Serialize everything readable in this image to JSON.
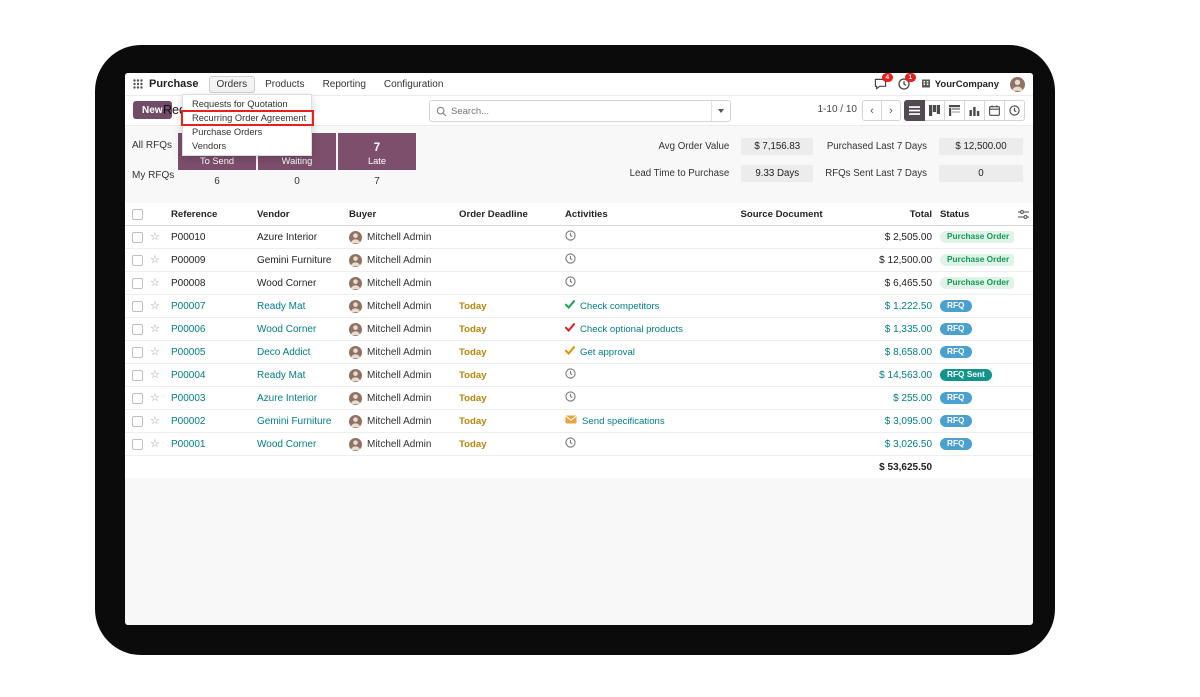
{
  "colors": {
    "brand_purple": "#714B67",
    "tile_purple": "#7d4f6d",
    "link_teal": "#017e84",
    "today_amber": "#b8860b",
    "annotation_red": "#e5201d",
    "status_po_green": "#139a53",
    "status_rfq_blue": "#4aa0cf",
    "status_rfq_sent_teal": "#12948c"
  },
  "navbar": {
    "app_name": "Purchase",
    "menus": [
      {
        "label": "Orders",
        "active": true
      },
      {
        "label": "Products",
        "active": false
      },
      {
        "label": "Reporting",
        "active": false
      },
      {
        "label": "Configuration",
        "active": false
      }
    ],
    "systray": {
      "messages_badge": "4",
      "activities_badge": "1",
      "company": "YourCompany"
    }
  },
  "orders_menu": {
    "items": [
      {
        "label": "Requests for Quotation",
        "annotated": false
      },
      {
        "label": "Recurring Order Agreement",
        "annotated": true
      },
      {
        "label": "Purchase Orders",
        "annotated": false
      },
      {
        "label": "Vendors",
        "annotated": false
      }
    ]
  },
  "control_panel": {
    "new_button": "New",
    "title": "Requests for Quotation",
    "search_placeholder": "Search...",
    "pager": "1-10 / 10",
    "views": [
      "list",
      "kanban",
      "pivot",
      "graph",
      "calendar",
      "activity"
    ]
  },
  "dashboard": {
    "row_labels": [
      "All RFQs",
      "My RFQs"
    ],
    "tiles": [
      {
        "label": "To Send",
        "all": "",
        "my": "6"
      },
      {
        "label": "Waiting",
        "all": "",
        "my": "0"
      },
      {
        "label": "Late",
        "all": "7",
        "my": "7"
      }
    ],
    "kpis": [
      {
        "label": "Avg Order Value",
        "value": "$ 7,156.83"
      },
      {
        "label": "Lead Time to Purchase",
        "value": "9.33 Days"
      },
      {
        "label": "Purchased Last 7 Days",
        "value": "$ 12,500.00"
      },
      {
        "label": "RFQs Sent Last 7 Days",
        "value": "0"
      }
    ]
  },
  "table": {
    "headers": [
      "Reference",
      "Vendor",
      "Buyer",
      "Order Deadline",
      "Activities",
      "Source Document",
      "Total",
      "Status"
    ],
    "rows": [
      {
        "reference": "P00010",
        "vendor": "Azure Interior",
        "buyer": "Mitchell Admin",
        "deadline": "",
        "activity": {
          "icon": "clock",
          "color": "",
          "text": ""
        },
        "source": "",
        "total": "$ 2,505.00",
        "status": "Purchase Order",
        "status_style": "po",
        "tone": "dark"
      },
      {
        "reference": "P00009",
        "vendor": "Gemini Furniture",
        "buyer": "Mitchell Admin",
        "deadline": "",
        "activity": {
          "icon": "clock",
          "color": "",
          "text": ""
        },
        "source": "",
        "total": "$ 12,500.00",
        "status": "Purchase Order",
        "status_style": "po",
        "tone": "dark"
      },
      {
        "reference": "P00008",
        "vendor": "Wood Corner",
        "buyer": "Mitchell Admin",
        "deadline": "",
        "activity": {
          "icon": "clock",
          "color": "",
          "text": ""
        },
        "source": "",
        "total": "$ 6,465.50",
        "status": "Purchase Order",
        "status_style": "po",
        "tone": "dark"
      },
      {
        "reference": "P00007",
        "vendor": "Ready Mat",
        "buyer": "Mitchell Admin",
        "deadline": "Today",
        "activity": {
          "icon": "check",
          "color": "green",
          "text": "Check competitors"
        },
        "source": "",
        "total": "$ 1,222.50",
        "status": "RFQ",
        "status_style": "rfq",
        "tone": "teal"
      },
      {
        "reference": "P00006",
        "vendor": "Wood Corner",
        "buyer": "Mitchell Admin",
        "deadline": "Today",
        "activity": {
          "icon": "check",
          "color": "red",
          "text": "Check optional products"
        },
        "source": "",
        "total": "$ 1,335.00",
        "status": "RFQ",
        "status_style": "rfq",
        "tone": "teal"
      },
      {
        "reference": "P00005",
        "vendor": "Deco Addict",
        "buyer": "Mitchell Admin",
        "deadline": "Today",
        "activity": {
          "icon": "check",
          "color": "orange",
          "text": "Get approval"
        },
        "source": "",
        "total": "$ 8,658.00",
        "status": "RFQ",
        "status_style": "rfq",
        "tone": "teal"
      },
      {
        "reference": "P00004",
        "vendor": "Ready Mat",
        "buyer": "Mitchell Admin",
        "deadline": "Today",
        "activity": {
          "icon": "clock",
          "color": "",
          "text": ""
        },
        "source": "",
        "total": "$ 14,563.00",
        "status": "RFQ Sent",
        "status_style": "rfq_sent",
        "tone": "teal"
      },
      {
        "reference": "P00003",
        "vendor": "Azure Interior",
        "buyer": "Mitchell Admin",
        "deadline": "Today",
        "activity": {
          "icon": "clock",
          "color": "",
          "text": ""
        },
        "source": "",
        "total": "$ 255.00",
        "status": "RFQ",
        "status_style": "rfq",
        "tone": "teal"
      },
      {
        "reference": "P00002",
        "vendor": "Gemini Furniture",
        "buyer": "Mitchell Admin",
        "deadline": "Today",
        "activity": {
          "icon": "envelope",
          "color": "",
          "text": "Send specifications"
        },
        "source": "",
        "total": "$ 3,095.00",
        "status": "RFQ",
        "status_style": "rfq",
        "tone": "teal"
      },
      {
        "reference": "P00001",
        "vendor": "Wood Corner",
        "buyer": "Mitchell Admin",
        "deadline": "Today",
        "activity": {
          "icon": "clock",
          "color": "",
          "text": ""
        },
        "source": "",
        "total": "$ 3,026.50",
        "status": "RFQ",
        "status_style": "rfq",
        "tone": "teal"
      }
    ],
    "sum_total": "$ 53,625.50"
  }
}
